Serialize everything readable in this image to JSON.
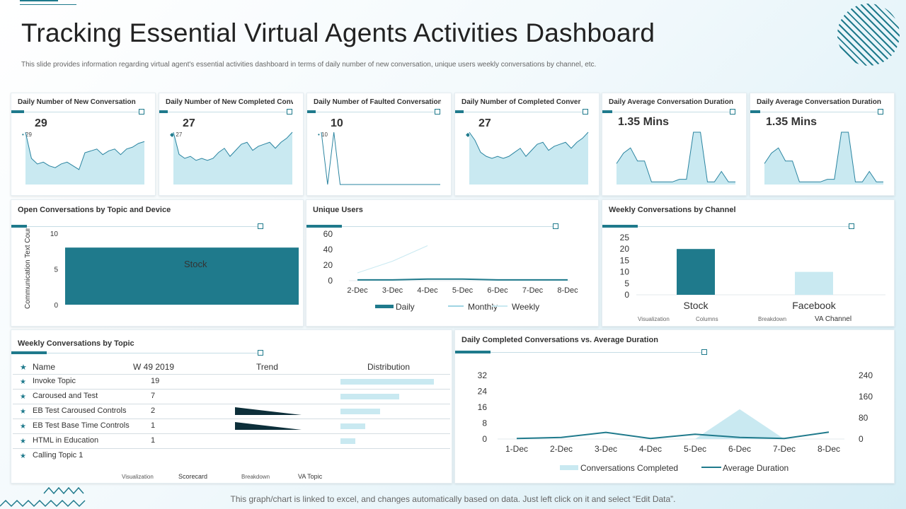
{
  "page": {
    "title": "Tracking Essential Virtual Agents Activities Dashboard",
    "subtitle": "This slide provides information regarding virtual agent's essential activities dashboard in terms of daily number of new conversation, unique users weekly conversations by channel, etc.",
    "footer": "This graph/chart is linked to excel, and changes automatically based on data. Just left click on it and select “Edit Data”."
  },
  "kpis": [
    {
      "title": "Daily Number of New Conversation",
      "value": "29",
      "marker_label": "29",
      "marker": "dot",
      "chart_data": {
        "type": "area",
        "values": [
          28,
          14,
          11,
          12,
          10,
          9,
          11,
          12,
          10,
          8,
          17,
          18,
          19,
          16,
          18,
          19,
          16,
          19,
          20,
          22,
          23
        ]
      }
    },
    {
      "title": "Daily Number of New Completed Conver",
      "value": "27",
      "marker_label": "27",
      "marker": "diamond",
      "chart_data": {
        "type": "area",
        "values": [
          26,
          15,
          13,
          14,
          12,
          13,
          12,
          13,
          16,
          18,
          14,
          17,
          20,
          21,
          17,
          19,
          20,
          21,
          18,
          21,
          23,
          26
        ]
      }
    },
    {
      "title": "Daily Number of Faulted Conversation",
      "value": "10",
      "marker_label": "10",
      "marker": "dot",
      "chart_data": {
        "type": "line",
        "values": [
          10,
          0,
          10,
          0,
          0,
          0,
          0,
          0,
          0,
          0,
          0,
          0,
          0,
          0,
          0,
          0,
          0,
          0,
          0,
          0
        ]
      }
    },
    {
      "title": "Daily Number of Completed Conver",
      "value": "27",
      "marker_label": "",
      "marker": "diamond",
      "chart_data": {
        "type": "area",
        "values": [
          26,
          22,
          16,
          14,
          13,
          14,
          13,
          14,
          16,
          18,
          14,
          17,
          20,
          21,
          17,
          19,
          20,
          21,
          18,
          21,
          23,
          26
        ]
      }
    },
    {
      "title": "Daily Average Conversation Duration",
      "value": "1.35 Mins",
      "marker_label": "",
      "marker": "",
      "chart_data": {
        "type": "area",
        "values": [
          0.8,
          1.2,
          1.4,
          0.9,
          0.9,
          0.1,
          0.1,
          0.1,
          0.1,
          0.2,
          0.2,
          2.0,
          2.0,
          0.1,
          0.1,
          0.5,
          0.1,
          0.1
        ]
      }
    },
    {
      "title": "Daily Average Conversation Duration",
      "value": "1.35 Mins",
      "marker_label": "",
      "marker": "",
      "chart_data": {
        "type": "area",
        "values": [
          0.8,
          1.2,
          1.4,
          0.9,
          0.9,
          0.1,
          0.1,
          0.1,
          0.1,
          0.2,
          0.2,
          2.0,
          2.0,
          0.1,
          0.1,
          0.5,
          0.1,
          0.1
        ]
      }
    }
  ],
  "open_conversations": {
    "title": "Open Conversations by Topic and Device",
    "legend": "Stock",
    "ylabel": "Communication Text Count",
    "chart_data": {
      "type": "bar",
      "categories": [
        ""
      ],
      "series": [
        {
          "name": "Stock",
          "values": [
            8
          ]
        }
      ],
      "ylim": [
        0,
        10
      ],
      "yticks": [
        "10",
        "5",
        "0"
      ]
    }
  },
  "unique_users": {
    "title": "Unique Users",
    "chart_data": {
      "type": "line",
      "categories": [
        "2-Dec",
        "3-Dec",
        "4-Dec",
        "5-Dec",
        "6-Dec",
        "7-Dec",
        "8-Dec"
      ],
      "yticks": [
        "60",
        "40",
        "20",
        "0"
      ],
      "ylim": [
        0,
        60
      ],
      "series": [
        {
          "name": "Daily",
          "values": [
            1,
            1,
            2,
            2,
            1,
            1,
            1
          ]
        },
        {
          "name": "Monthly",
          "values": [
            null,
            null,
            null,
            null,
            null,
            null,
            null
          ]
        },
        {
          "name": "Weekly",
          "values": [
            10,
            25,
            45,
            null,
            null,
            null,
            null
          ]
        }
      ]
    }
  },
  "weekly_channel": {
    "title": "Weekly Conversations by Channel",
    "chart_data": {
      "type": "bar",
      "categories": [
        "Stock",
        "Facebook"
      ],
      "values": [
        20,
        10
      ],
      "ylim": [
        0,
        25
      ],
      "yticks": [
        "25",
        "20",
        "15",
        "10",
        "5",
        "0"
      ]
    },
    "filters": [
      "Visualization",
      "Columns",
      "Breakdown",
      "VA Channel"
    ]
  },
  "weekly_topic": {
    "title": "Weekly Conversations by Topic",
    "headers": {
      "name": "Name",
      "week": "W 49 2019",
      "trend": "Trend",
      "distribution": "Distribution"
    },
    "rows": [
      {
        "name": "Invoke Topic",
        "count": "19",
        "dist": 19,
        "trend": false
      },
      {
        "name": "Caroused and Test",
        "count": "7",
        "dist": 12,
        "trend": false
      },
      {
        "name": "EB Test Caroused Controls",
        "count": "2",
        "dist": 8,
        "trend": true
      },
      {
        "name": "EB Test Base Time Controls",
        "count": "1",
        "dist": 5,
        "trend": true
      },
      {
        "name": "HTML  in Education",
        "count": "1",
        "dist": 3,
        "trend": false
      },
      {
        "name": "Calling Topic 1",
        "count": "",
        "dist": 0,
        "trend": false
      }
    ],
    "filters": [
      "Visualization",
      "Scorecard",
      "Breakdown",
      "VA Topic"
    ]
  },
  "daily_completed": {
    "title": "Daily Completed Conversations vs. Average Duration",
    "chart_data": {
      "type": "line",
      "categories": [
        "1-Dec",
        "2-Dec",
        "3-Dec",
        "4-Dec",
        "5-Dec",
        "6-Dec",
        "7-Dec",
        "8-Dec"
      ],
      "yticks_left": [
        "32",
        "24",
        "16",
        "8",
        "0"
      ],
      "yticks_right": [
        "240",
        "160",
        "80",
        "0"
      ],
      "ylim_left": [
        0,
        32
      ],
      "ylim_right": [
        0,
        240
      ],
      "series": [
        {
          "name": "Conversations Completed",
          "axis": "left",
          "values": [
            0,
            0,
            0,
            0,
            0,
            15,
            0,
            0
          ]
        },
        {
          "name": "Average Duration",
          "axis": "right",
          "values": [
            2,
            6,
            25,
            2,
            18,
            6,
            2,
            26
          ]
        }
      ]
    }
  },
  "colors": {
    "teal": "#1f7a8c",
    "light": "#c9e9f1",
    "dark": "#0d2f3a"
  }
}
